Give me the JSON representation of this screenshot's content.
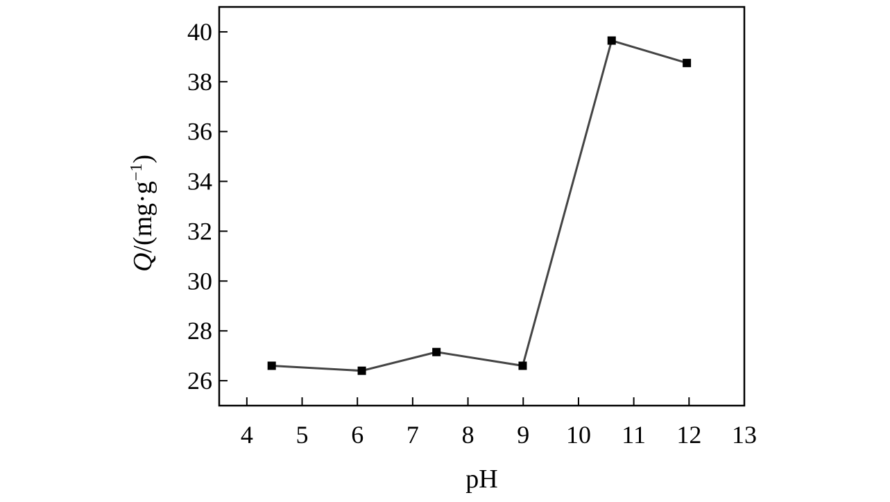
{
  "chart_data": {
    "type": "line",
    "title": "",
    "xlabel": "pH",
    "ylabel_var": "Q",
    "ylabel_unit_open": "/(mg·g",
    "ylabel_unit_sup": "−1",
    "ylabel_unit_close": ")",
    "xlim": [
      3.5,
      13
    ],
    "ylim": [
      25,
      41
    ],
    "xticks": [
      4,
      5,
      6,
      7,
      8,
      9,
      10,
      11,
      12,
      13
    ],
    "yticks": [
      26,
      28,
      30,
      32,
      34,
      36,
      38,
      40
    ],
    "grid": false,
    "series": [
      {
        "x": [
          4.45,
          6.08,
          7.43,
          8.99,
          10.6,
          11.96
        ],
        "y": [
          26.6,
          26.4,
          27.15,
          26.6,
          39.65,
          38.75
        ]
      }
    ],
    "line_color": "#444444",
    "marker_color": "#000000",
    "axis_color": "#000000"
  }
}
